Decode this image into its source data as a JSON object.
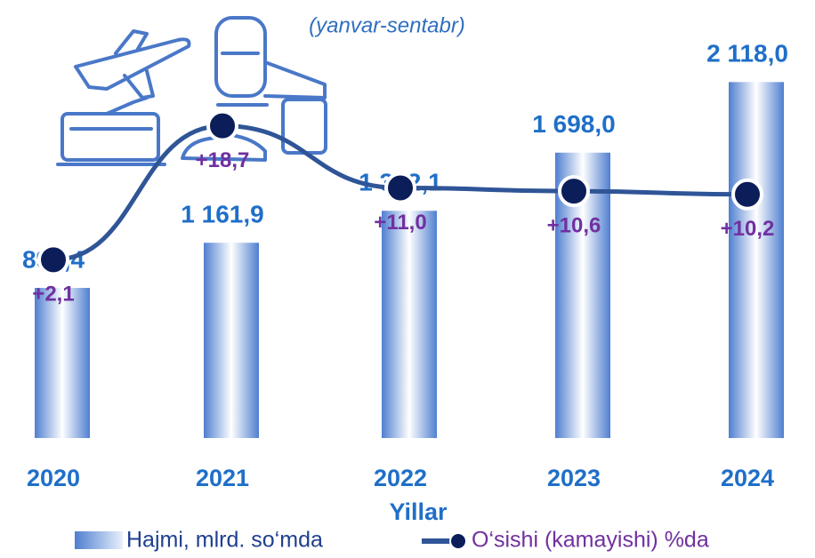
{
  "chart_data": {
    "type": "bar",
    "subtitle": "(yanvar-sentabr)",
    "x_label": "Yillar",
    "categories": [
      "2020",
      "2021",
      "2022",
      "2023",
      "2024"
    ],
    "series": [
      {
        "name": "Hajmi, mlrd. so‘mda",
        "color": "#5b8fd8",
        "values": [
          893.4,
          1161.9,
          1352.1,
          1698.0,
          2118.0
        ],
        "value_labels": [
          "893,4",
          "1 161,9",
          "1 352,1",
          "1 698,0",
          "2 118,0"
        ]
      },
      {
        "name": "O‘sishi (kamayishi) %da",
        "color": "#2f5597",
        "type": "line",
        "axis": "y2",
        "values": [
          2.1,
          18.7,
          11.0,
          10.6,
          10.2
        ],
        "value_labels": [
          "+2,1",
          "+18,7",
          "+11,0",
          "+10,6",
          "+10,2"
        ]
      }
    ],
    "ylim": [
      0,
      2400
    ],
    "y2lim": [
      -20,
      30
    ]
  }
}
